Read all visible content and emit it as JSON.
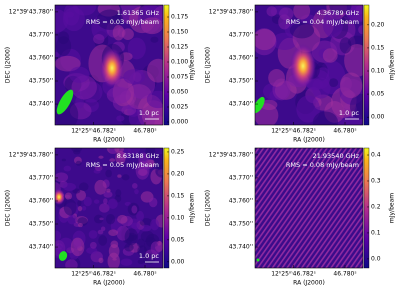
{
  "chart_data": [
    {
      "type": "image",
      "title": "1.61365 GHz",
      "subtitle": "RMS = 0.03 mJy/beam",
      "annotation": "1.0 pc",
      "xlabel": "RA (J2000)",
      "ylabel": "DEC (J2000)",
      "colorbar_label": "mJy/beam",
      "xlim": [
        46.7835,
        46.7793
      ],
      "xticks": [
        {
          "value": 46.782,
          "label": "12ʰ25ᵐ46.782ˢ"
        },
        {
          "value": 46.78,
          "label": "46.780ˢ"
        }
      ],
      "ylim": [
        43.7309,
        43.783
      ],
      "yticks": [
        {
          "value": 43.78,
          "label": "12°39'43.780''"
        },
        {
          "value": 43.77,
          "label": "43.770''"
        },
        {
          "value": 43.76,
          "label": "43.760''"
        },
        {
          "value": 43.75,
          "label": "43.750''"
        },
        {
          "value": 43.74,
          "label": "43.740''"
        }
      ],
      "clim": [
        -0.005,
        0.195
      ],
      "cticks": [
        {
          "value": 0,
          "label": "0.000"
        },
        0.025,
        {
          "value": 0.05,
          "label": "0.050"
        },
        0.075,
        {
          "value": 0.1,
          "label": "0.100"
        },
        0.125,
        {
          "value": 0.15,
          "label": "0.150"
        },
        0.175
      ]
    },
    {
      "type": "image",
      "title": "4.36789 GHz",
      "subtitle": "RMS = 0.04 mJy/beam",
      "annotation": "1.0 pc",
      "xlabel": "RA (J2000)",
      "ylabel": "DEC (J2000)",
      "colorbar_label": "mJy/beam",
      "xlim": [
        46.7835,
        46.7793
      ],
      "xticks": [
        {
          "value": 46.782,
          "label": "12ʰ25ᵐ46.782ˢ"
        },
        {
          "value": 46.78,
          "label": "46.780ˢ"
        }
      ],
      "ylim": [
        43.7309,
        43.783
      ],
      "yticks": [
        {
          "value": 43.78,
          "label": "12°39'43.780''"
        },
        {
          "value": 43.77,
          "label": "43.770''"
        },
        {
          "value": 43.76,
          "label": "43.760''"
        },
        {
          "value": 43.75,
          "label": "43.750''"
        },
        {
          "value": 43.74,
          "label": "43.740''"
        }
      ],
      "clim": [
        -0.017,
        0.243
      ],
      "cticks": [
        {
          "value": 0,
          "label": "0.00"
        },
        0.05,
        {
          "value": 0.1,
          "label": "0.10"
        },
        0.15,
        {
          "value": 0.2,
          "label": "0.20"
        }
      ]
    },
    {
      "type": "image",
      "title": "8.63188 GHz",
      "subtitle": "RMS = 0.05 mJy/beam",
      "annotation": "1.0 pc",
      "xlabel": "RA (J2000)",
      "ylabel": "DEC (J2000)",
      "colorbar_label": "mJy/beam",
      "xlim": [
        46.7835,
        46.7793
      ],
      "xticks": [
        {
          "value": 46.782,
          "label": "12ʰ25ᵐ46.782ˢ"
        },
        {
          "value": 46.78,
          "label": "46.780ˢ"
        }
      ],
      "ylim": [
        43.7309,
        43.783
      ],
      "yticks": [
        {
          "value": 43.78,
          "label": "12°39'43.780''"
        },
        {
          "value": 43.77,
          "label": "43.770''"
        },
        {
          "value": 43.76,
          "label": "43.760''"
        },
        {
          "value": 43.75,
          "label": "43.750''"
        },
        {
          "value": 43.74,
          "label": "43.740''"
        }
      ],
      "clim": [
        -0.014,
        0.259
      ],
      "cticks": [
        {
          "value": 0,
          "label": "0.00"
        },
        0.05,
        {
          "value": 0.1,
          "label": "0.10"
        },
        0.15,
        {
          "value": 0.2,
          "label": "0.20"
        },
        0.25
      ]
    },
    {
      "type": "image",
      "title": "21.93540 GHz",
      "subtitle": "RMS = 0.08 mJy/beam",
      "xlabel": "RA (J2000)",
      "ylabel": "DEC (J2000)",
      "colorbar_label": "mJy/beam",
      "xlim": [
        46.7835,
        46.7793
      ],
      "xticks": [
        {
          "value": 46.782,
          "label": "12ʰ25ᵐ46.782ˢ"
        },
        {
          "value": 46.78,
          "label": "46.780ˢ"
        }
      ],
      "ylim": [
        43.7309,
        43.783
      ],
      "yticks": [
        {
          "value": 43.78,
          "label": "12°39'43.780''"
        },
        {
          "value": 43.77,
          "label": "43.770''"
        },
        {
          "value": 43.76,
          "label": "43.760''"
        },
        {
          "value": 43.75,
          "label": "43.750''"
        },
        {
          "value": 43.74,
          "label": "43.740''"
        }
      ],
      "clim": [
        -0.035,
        0.427
      ],
      "cticks": [
        {
          "value": 0,
          "label": "0.0"
        },
        0.1,
        0.2,
        0.3,
        0.4
      ]
    }
  ]
}
